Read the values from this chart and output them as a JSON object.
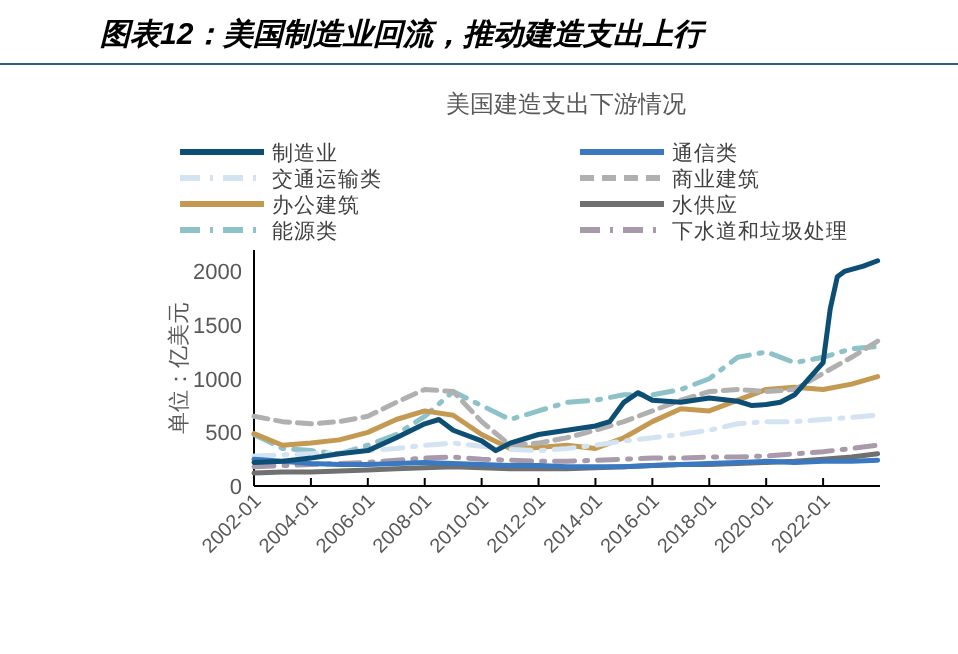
{
  "chart_data": {
    "type": "line",
    "title": "图表12：美国制造业回流，推动建造支出上行",
    "subtitle": "美国建造支出下游情况",
    "ylabel": "单位：亿美元",
    "x": [
      "2002-01",
      "2003-01",
      "2004-01",
      "2005-01",
      "2006-01",
      "2007-01",
      "2008-01",
      "2009-01",
      "2010-01",
      "2011-01",
      "2012-01",
      "2013-01",
      "2014-01",
      "2015-01",
      "2016-01",
      "2017-01",
      "2018-01",
      "2019-01",
      "2020-01",
      "2021-01",
      "2022-01",
      "2023-01",
      "2023-12"
    ],
    "xlim": [
      "2002-01",
      "2024-01"
    ],
    "xticks": [
      "2002-01",
      "2004-01",
      "2006-01",
      "2008-01",
      "2010-01",
      "2012-01",
      "2014-01",
      "2016-01",
      "2018-01",
      "2020-01",
      "2022-01"
    ],
    "ylim": [
      0,
      2200
    ],
    "yticks": [
      0,
      500,
      1000,
      1500,
      2000
    ],
    "grid": false,
    "legend": "top",
    "series": [
      {
        "name": "制造业",
        "color": "#0d4f74",
        "line_style": "solid",
        "x": [
          "2002-01",
          "2003-01",
          "2004-01",
          "2005-01",
          "2006-01",
          "2007-01",
          "2008-01",
          "2008-07",
          "2009-01",
          "2010-01",
          "2010-07",
          "2011-01",
          "2012-01",
          "2013-01",
          "2014-01",
          "2014-07",
          "2015-01",
          "2015-07",
          "2016-01",
          "2017-01",
          "2018-01",
          "2019-01",
          "2019-07",
          "2020-01",
          "2020-07",
          "2021-01",
          "2021-07",
          "2022-01",
          "2022-04",
          "2022-07",
          "2022-10",
          "2023-06",
          "2023-12"
        ],
        "values": [
          220,
          230,
          260,
          300,
          330,
          450,
          580,
          620,
          520,
          420,
          330,
          400,
          480,
          520,
          560,
          600,
          780,
          870,
          800,
          780,
          820,
          790,
          750,
          760,
          780,
          850,
          1000,
          1150,
          1650,
          1950,
          2000,
          2050,
          2100
        ]
      },
      {
        "name": "通信类",
        "color": "#3a78c0",
        "line_style": "solid",
        "values": [
          250,
          230,
          210,
          200,
          200,
          210,
          220,
          210,
          200,
          190,
          190,
          180,
          180,
          180,
          190,
          200,
          210,
          220,
          230,
          220,
          230,
          230,
          240
        ]
      },
      {
        "name": "交通运输类",
        "color": "#d4e3f2",
        "line_style": "dotted",
        "values": [
          280,
          290,
          300,
          310,
          330,
          350,
          380,
          400,
          370,
          340,
          330,
          350,
          380,
          420,
          450,
          480,
          520,
          580,
          600,
          600,
          620,
          640,
          660
        ]
      },
      {
        "name": "商业建筑",
        "color": "#b0b0b0",
        "line_style": "dashed",
        "values": [
          650,
          600,
          580,
          600,
          650,
          780,
          900,
          880,
          600,
          380,
          400,
          450,
          520,
          600,
          700,
          800,
          880,
          900,
          880,
          900,
          1050,
          1200,
          1350
        ]
      },
      {
        "name": "办公建筑",
        "color": "#c49a52",
        "line_style": "solid",
        "values": [
          490,
          380,
          400,
          430,
          500,
          620,
          700,
          660,
          480,
          350,
          360,
          380,
          350,
          450,
          600,
          720,
          700,
          800,
          900,
          920,
          900,
          950,
          1020
        ]
      },
      {
        "name": "水供应",
        "color": "#707070",
        "line_style": "solid",
        "values": [
          120,
          130,
          130,
          140,
          150,
          160,
          170,
          180,
          170,
          160,
          160,
          160,
          170,
          180,
          190,
          200,
          200,
          210,
          220,
          230,
          250,
          270,
          300
        ]
      },
      {
        "name": "能源类",
        "color": "#8cc2c8",
        "line_style": "dotted",
        "values": [
          480,
          350,
          330,
          300,
          380,
          480,
          650,
          880,
          750,
          620,
          700,
          780,
          800,
          850,
          850,
          900,
          1000,
          1200,
          1250,
          1150,
          1200,
          1280,
          1300
        ]
      },
      {
        "name": "下水道和垃圾处理",
        "color": "#a89aaa",
        "line_style": "dotted",
        "values": [
          180,
          190,
          200,
          210,
          220,
          240,
          260,
          270,
          250,
          240,
          230,
          230,
          240,
          250,
          260,
          260,
          270,
          270,
          280,
          300,
          320,
          350,
          380
        ]
      }
    ]
  }
}
